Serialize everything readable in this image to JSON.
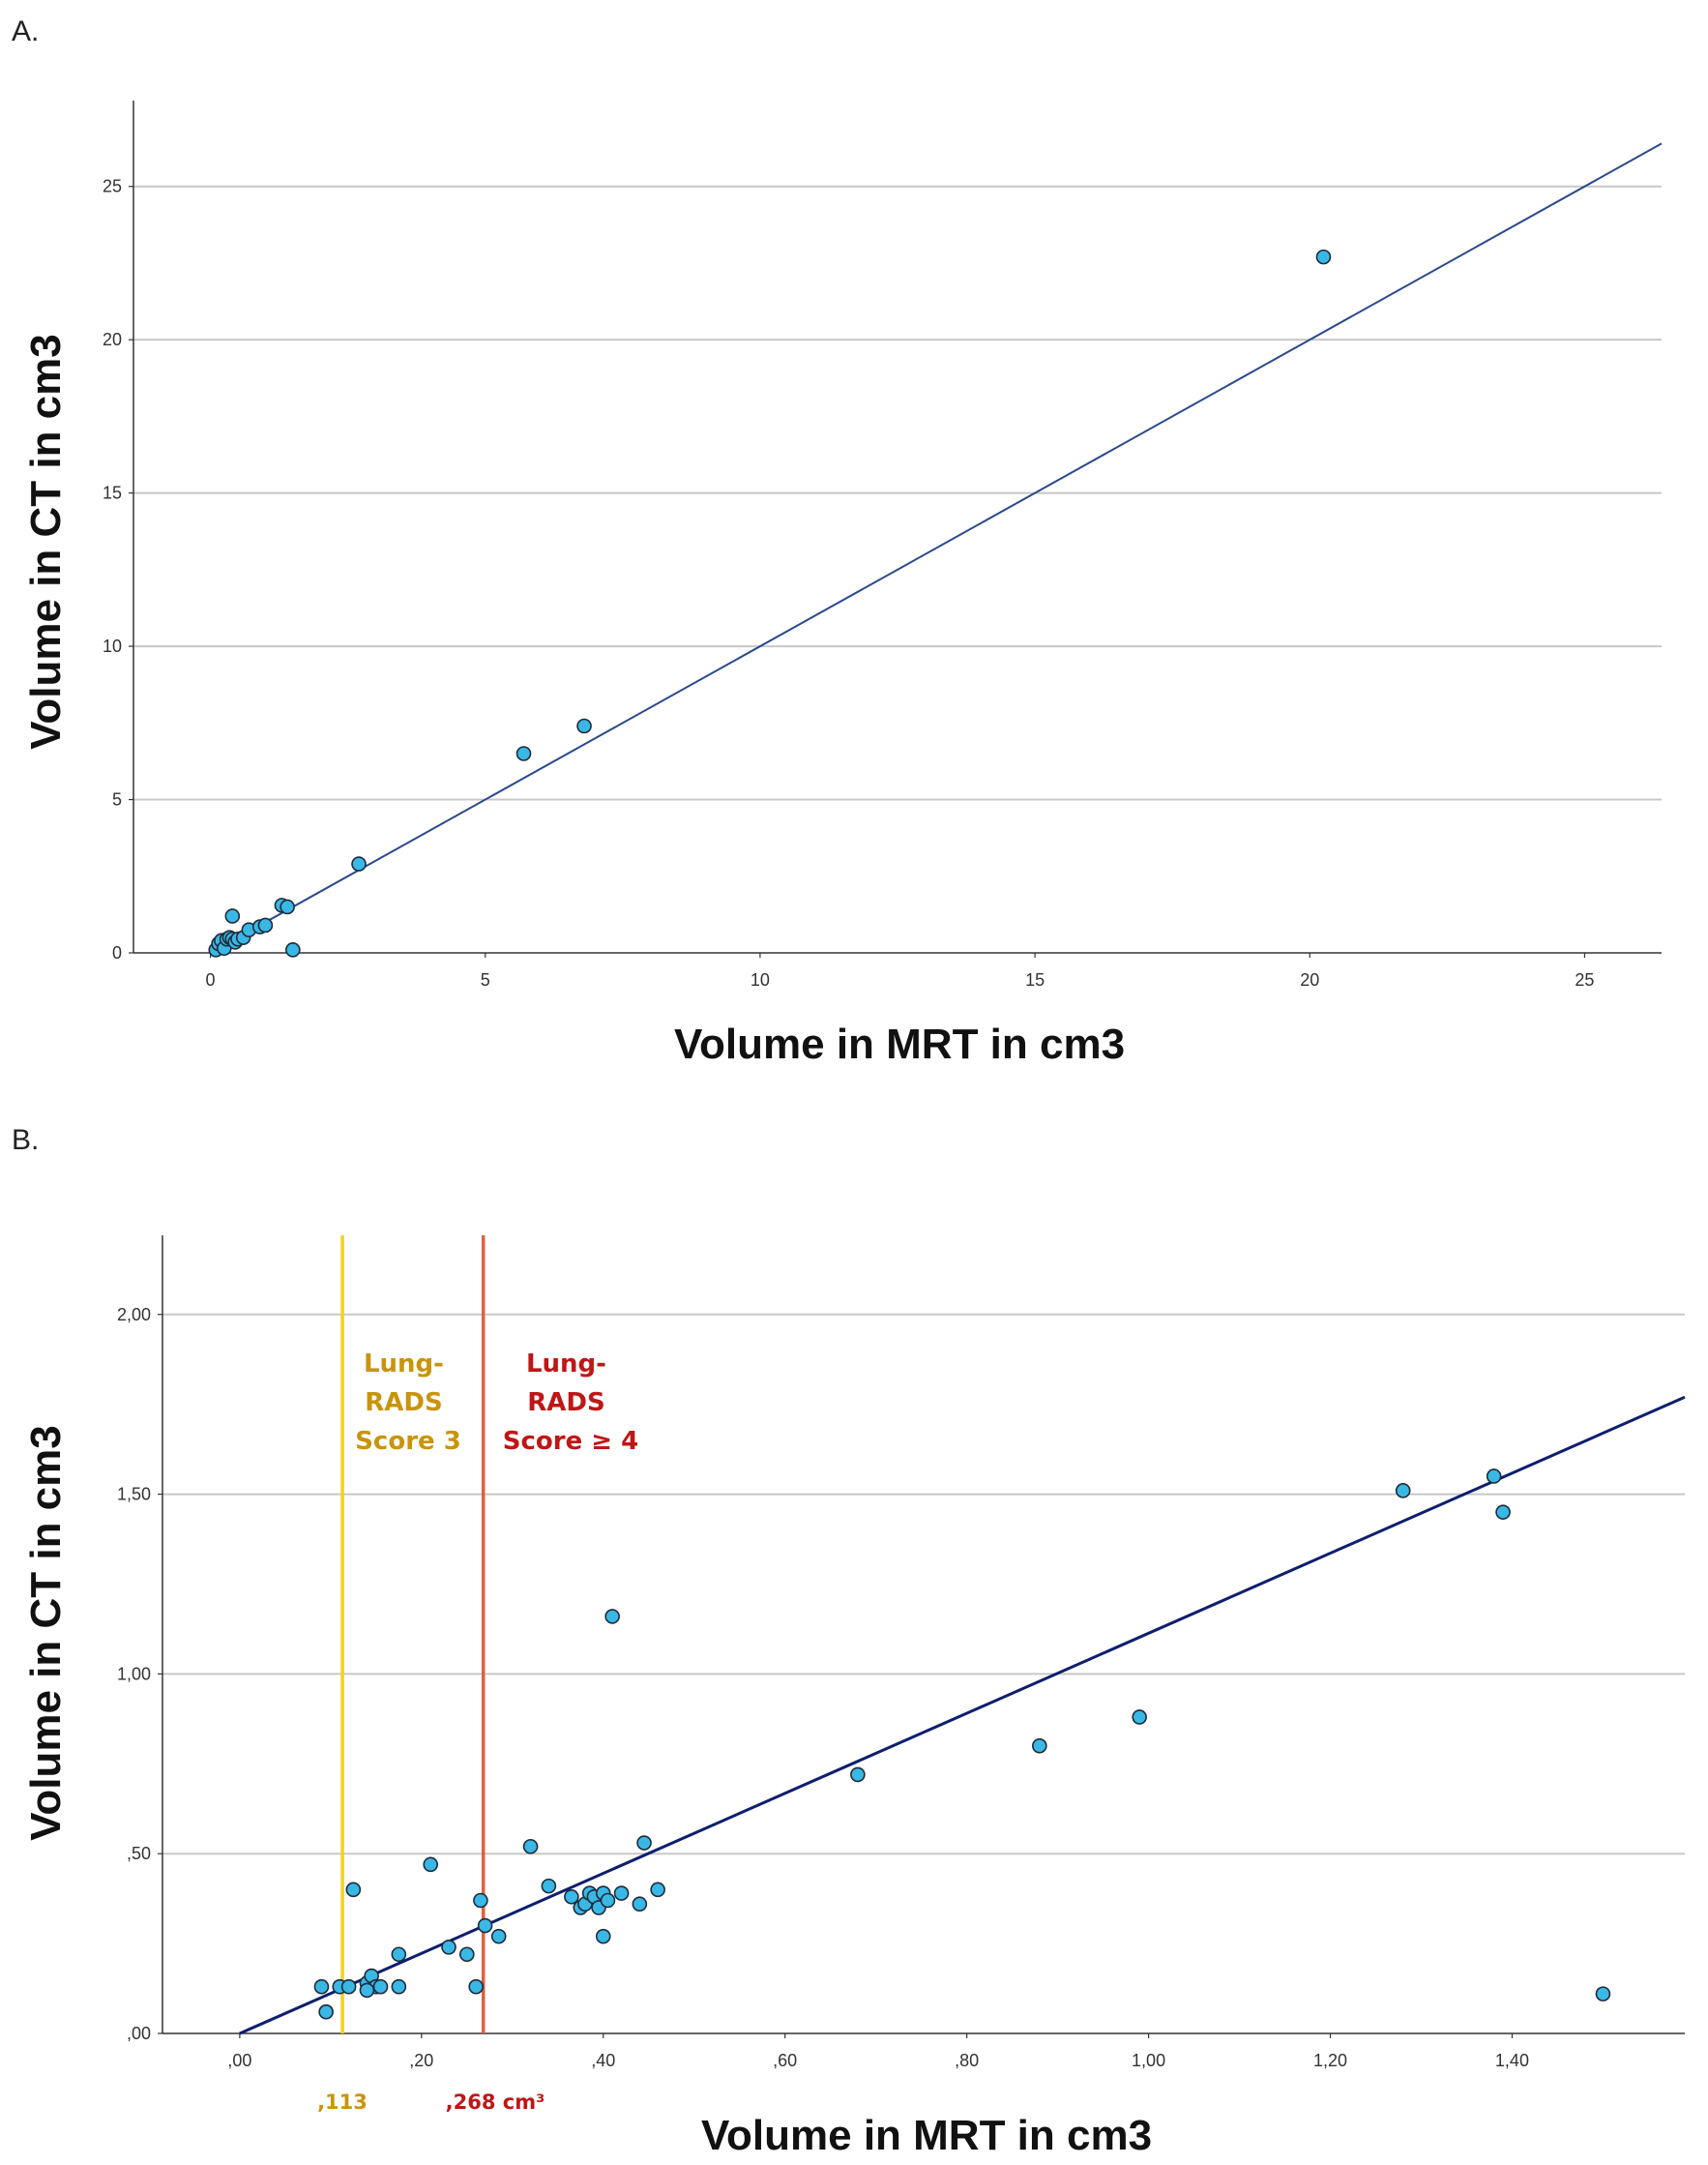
{
  "chart_data": [
    {
      "panel_label": "A.",
      "type": "scatter",
      "xlabel": "Volume in MRT in cm3",
      "ylabel": "Volume in CT in cm3",
      "xlim": [
        -1.4,
        26.4
      ],
      "ylim": [
        0,
        27.8
      ],
      "xticks": [
        0,
        5,
        10,
        15,
        20,
        25
      ],
      "yticks": [
        0,
        5,
        10,
        15,
        20,
        25
      ],
      "xtick_labels": [
        "0",
        "5",
        "10",
        "15",
        "20",
        "25"
      ],
      "ytick_labels": [
        "0",
        "5",
        "10",
        "15",
        "20",
        "25"
      ],
      "grid": "horizontal",
      "colors": {
        "points": "#39b8e6",
        "point_edge": "#1f2a3a",
        "fit_line": "#2b4a8c",
        "grid": "#c8c8c8",
        "axis": "#333333"
      },
      "fit_line": {
        "x0": 0,
        "y0": 0,
        "x1": 26.4,
        "y1": 26.4
      },
      "points": [
        [
          0.1,
          0.1
        ],
        [
          0.15,
          0.3
        ],
        [
          0.2,
          0.4
        ],
        [
          0.25,
          0.15
        ],
        [
          0.3,
          0.45
        ],
        [
          0.35,
          0.5
        ],
        [
          0.4,
          0.45
        ],
        [
          0.45,
          0.35
        ],
        [
          0.4,
          1.2
        ],
        [
          0.5,
          0.45
        ],
        [
          0.6,
          0.5
        ],
        [
          0.7,
          0.75
        ],
        [
          0.9,
          0.85
        ],
        [
          1.0,
          0.9
        ],
        [
          1.3,
          1.55
        ],
        [
          1.4,
          1.5
        ],
        [
          1.5,
          0.1
        ],
        [
          2.7,
          2.9
        ],
        [
          5.7,
          6.5
        ],
        [
          6.8,
          7.4
        ],
        [
          20.25,
          22.7
        ]
      ]
    },
    {
      "panel_label": "B.",
      "type": "scatter",
      "xlabel": "Volume in MRT in cm3",
      "ylabel": "Volume in CT in cm3",
      "xlim": [
        -0.085,
        1.59
      ],
      "ylim": [
        0,
        2.22
      ],
      "xticks": [
        0,
        0.2,
        0.4,
        0.6,
        0.8,
        1.0,
        1.2,
        1.4
      ],
      "yticks": [
        0,
        0.5,
        1.0,
        1.5,
        2.0
      ],
      "xtick_labels": [
        ",00",
        ",20",
        ",40",
        ",60",
        ",80",
        "1,00",
        "1,20",
        "1,40"
      ],
      "ytick_labels": [
        ",00",
        ",50",
        "1,00",
        "1,50",
        "2,00"
      ],
      "grid": "horizontal",
      "colors": {
        "points": "#39b8e6",
        "point_edge": "#1f2a3a",
        "fit_line": "#0d1f6e",
        "grid": "#c8c8c8",
        "axis": "#333333",
        "yellow_line": "#f2d21b",
        "red_line": "#e0603c",
        "score3_text": "#c9940d",
        "score4_text": "#c01616"
      },
      "fit_line": {
        "x0": 0,
        "y0": 0,
        "x1": 1.59,
        "y1": 1.77
      },
      "thresholds": [
        {
          "x": 0.113,
          "label": ",113",
          "annotation": [
            "Lung-",
            "RADS",
            "Score 3"
          ]
        },
        {
          "x": 0.268,
          "label": ",268 cm³",
          "annotation": [
            "Lung-",
            "RADS",
            "Score ≥ 4"
          ]
        }
      ],
      "points": [
        [
          0.09,
          0.13
        ],
        [
          0.095,
          0.06
        ],
        [
          0.11,
          0.13
        ],
        [
          0.12,
          0.13
        ],
        [
          0.125,
          0.4
        ],
        [
          0.14,
          0.14
        ],
        [
          0.145,
          0.16
        ],
        [
          0.15,
          0.13
        ],
        [
          0.14,
          0.12
        ],
        [
          0.155,
          0.13
        ],
        [
          0.175,
          0.13
        ],
        [
          0.175,
          0.22
        ],
        [
          0.21,
          0.47
        ],
        [
          0.23,
          0.24
        ],
        [
          0.25,
          0.22
        ],
        [
          0.26,
          0.13
        ],
        [
          0.265,
          0.37
        ],
        [
          0.27,
          0.3
        ],
        [
          0.285,
          0.27
        ],
        [
          0.32,
          0.52
        ],
        [
          0.34,
          0.41
        ],
        [
          0.365,
          0.38
        ],
        [
          0.375,
          0.35
        ],
        [
          0.38,
          0.36
        ],
        [
          0.385,
          0.39
        ],
        [
          0.39,
          0.38
        ],
        [
          0.395,
          0.35
        ],
        [
          0.4,
          0.39
        ],
        [
          0.405,
          0.37
        ],
        [
          0.4,
          0.27
        ],
        [
          0.41,
          1.16
        ],
        [
          0.42,
          0.39
        ],
        [
          0.44,
          0.36
        ],
        [
          0.445,
          0.53
        ],
        [
          0.46,
          0.4
        ],
        [
          0.68,
          0.72
        ],
        [
          0.88,
          0.8
        ],
        [
          0.99,
          0.88
        ],
        [
          1.28,
          1.51
        ],
        [
          1.38,
          1.55
        ],
        [
          1.39,
          1.45
        ],
        [
          1.5,
          0.11
        ]
      ]
    }
  ]
}
